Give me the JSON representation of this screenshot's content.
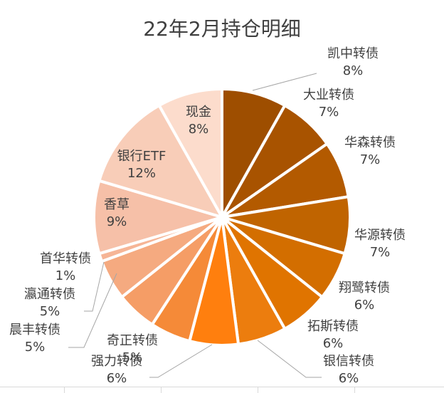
{
  "chart_data": {
    "type": "pie",
    "title": "22年2月持仓明细",
    "slices": [
      {
        "name": "凯中转债",
        "value": 8,
        "label": "8%",
        "color": "#9E4E00"
      },
      {
        "name": "大业转债",
        "value": 7,
        "label": "7%",
        "color": "#A85300"
      },
      {
        "name": "华森转债",
        "value": 7,
        "label": "7%",
        "color": "#B35A00"
      },
      {
        "name": "华源转债",
        "value": 7,
        "label": "7%",
        "color": "#C06400"
      },
      {
        "name": "翔鹭转债",
        "value": 6,
        "label": "6%",
        "color": "#D36E00"
      },
      {
        "name": "拓斯转债",
        "value": 6,
        "label": "6%",
        "color": "#E07400"
      },
      {
        "name": "银信转债",
        "value": 6,
        "label": "6%",
        "color": "#EC7D0E"
      },
      {
        "name": "强力转债",
        "value": 6,
        "label": "6%",
        "color": "#FF7F0E"
      },
      {
        "name": "奇正转债",
        "value": 5,
        "label": "5%",
        "color": "#F58A38"
      },
      {
        "name": "晨丰转债",
        "value": 5,
        "label": "5%",
        "color": "#F59D66"
      },
      {
        "name": "瀛通转债",
        "value": 5,
        "label": "5%",
        "color": "#F5AA80"
      },
      {
        "name": "首华转债",
        "value": 1,
        "label": "1%",
        "color": "#F6B596"
      },
      {
        "name": "香草",
        "value": 9,
        "label": "9%",
        "color": "#F6C0A8"
      },
      {
        "name": "银行ETF",
        "value": 12,
        "label": "12%",
        "color": "#F8CDB8"
      },
      {
        "name": "现金",
        "value": 8,
        "label": "8%",
        "color": "#FCDCCC"
      }
    ]
  }
}
